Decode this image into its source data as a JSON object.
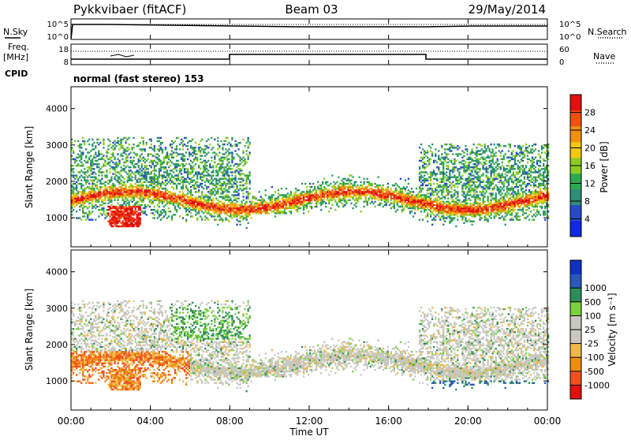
{
  "header": {
    "title": "Pykkvibaer (fitACF)",
    "beam": "Beam 03",
    "date": "29/May/2014"
  },
  "top_panels": {
    "nsky_label": "N.Sky",
    "nsearch_label": "N.Search",
    "noise_ticks": [
      "10^5",
      "10^0"
    ],
    "freq_label": "Freq.",
    "freq_unit": "[MHz]",
    "freq_ticks": [
      "18",
      "8"
    ],
    "nave_label": "Nave",
    "nave_ticks": [
      "60",
      "0"
    ],
    "cpid_label": "CPID",
    "cpid_value": "normal (fast stereo) 153"
  },
  "colors": {
    "power": [
      "#1028e0",
      "#2848c8",
      "#2e8c78",
      "#2ea850",
      "#8ccc20",
      "#f0c810",
      "#f09010",
      "#f05010",
      "#e01010"
    ],
    "velocity": [
      "#e01010",
      "#f05020",
      "#f08c10",
      "#f0b848",
      "#c8c8c0",
      "#c8c8c0",
      "#7cd040",
      "#2e8c58",
      "#2858b8",
      "#1030c0"
    ]
  },
  "chart_data": [
    {
      "type": "heatmap",
      "name": "power-panel",
      "ylabel": "Slant Range [km]",
      "yticks": [
        "1000",
        "2000",
        "3000",
        "4000"
      ],
      "ylim": [
        200,
        4600
      ],
      "xlim": [
        0,
        24
      ],
      "colorbar_label": "Power [dB]",
      "colorbar_ticks": [
        "4",
        "8",
        "12",
        "16",
        "20",
        "24",
        "28"
      ],
      "colorbar_range": [
        0,
        32
      ]
    },
    {
      "type": "heatmap",
      "name": "velocity-panel",
      "ylabel": "Slant Range [km]",
      "yticks": [
        "1000",
        "2000",
        "3000",
        "4000"
      ],
      "ylim": [
        200,
        4600
      ],
      "xlim": [
        0,
        24
      ],
      "colorbar_label": "Velocity [m s⁻¹]",
      "colorbar_ticks": [
        "-1000",
        "-500",
        "-100",
        "-25",
        "25",
        "100",
        "500",
        "1000"
      ]
    }
  ],
  "xaxis": {
    "label": "Time UT",
    "ticks": [
      "00:00",
      "04:00",
      "08:00",
      "12:00",
      "16:00",
      "20:00",
      "00:00"
    ]
  }
}
